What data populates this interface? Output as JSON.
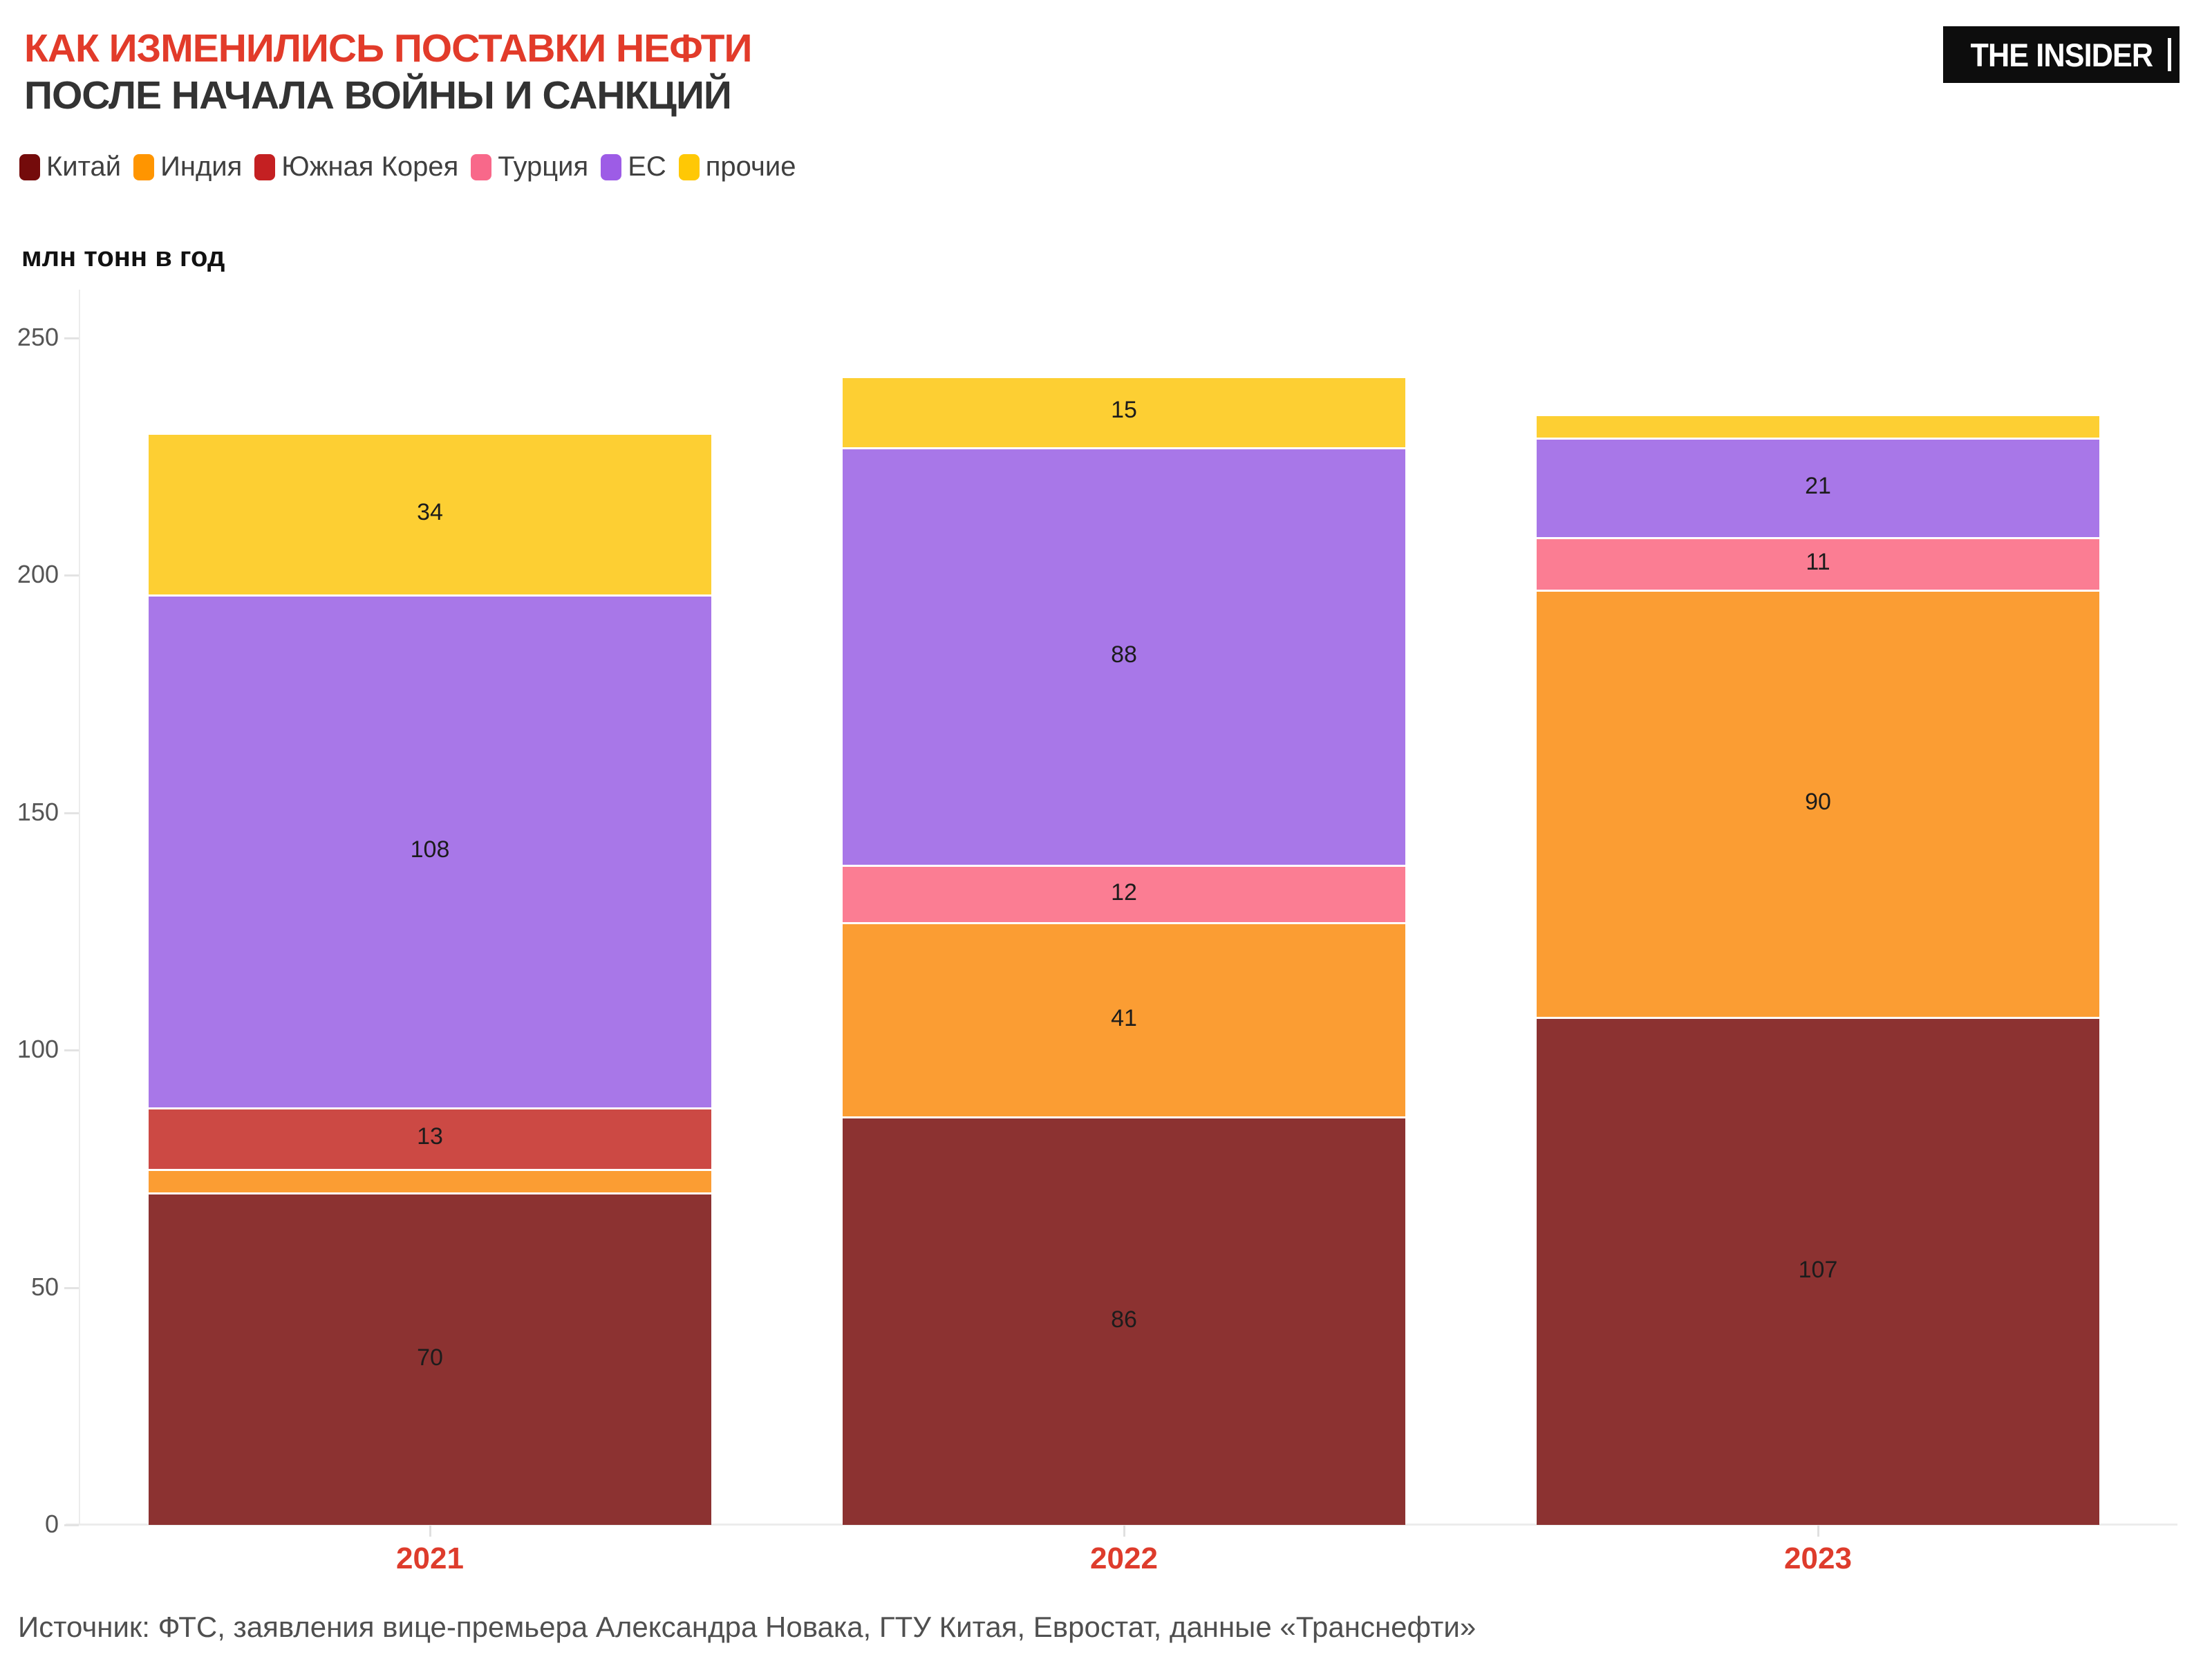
{
  "header": {
    "title_line1": "КАК ИЗМЕНИЛИСЬ ПОСТАВКИ НЕФТИ",
    "title_line2": "ПОСЛЕ НАЧАЛА ВОЙНЫ И САНКЦИЙ",
    "logo_text": "THE INSIDER"
  },
  "legend": [
    {
      "label": "Китай",
      "color": "#740B0B"
    },
    {
      "label": "Индия",
      "color": "#FF9500"
    },
    {
      "label": "Южная Корея",
      "color": "#C42022"
    },
    {
      "label": "Турция",
      "color": "#F8688A"
    },
    {
      "label": "ЕС",
      "color": "#9D5CE6"
    },
    {
      "label": "прочие",
      "color": "#FFC805"
    }
  ],
  "chart_data": {
    "type": "bar",
    "stacked": true,
    "title": "КАК ИЗМЕНИЛИСЬ ПОСТАВКИ НЕФТИ ПОСЛЕ НАЧАЛА ВОЙНЫ И САНКЦИЙ",
    "ylabel": "млн тонн в год",
    "xlabel": "",
    "categories": [
      "2021",
      "2022",
      "2023"
    ],
    "series": [
      {
        "name": "Китай",
        "color": "#8C3231",
        "values": [
          70,
          86,
          107
        ]
      },
      {
        "name": "Индия",
        "color": "#FB9D33",
        "values": [
          5,
          41,
          90
        ]
      },
      {
        "name": "Южная Корея",
        "color": "#CC4944",
        "values": [
          13,
          0,
          0
        ]
      },
      {
        "name": "Турция",
        "color": "#FB7D93",
        "values": [
          0,
          12,
          11
        ]
      },
      {
        "name": "ЕС",
        "color": "#A877E8",
        "values": [
          108,
          88,
          21
        ]
      },
      {
        "name": "прочие",
        "color": "#FDCF33",
        "values": [
          34,
          15,
          5
        ]
      }
    ],
    "totals": [
      230,
      242,
      234
    ],
    "y_ticks": [
      0,
      50,
      100,
      150,
      200,
      250
    ],
    "ylim": [
      0,
      250
    ],
    "grid": false,
    "legend_position": "top",
    "value_labels_min_shown": 10
  },
  "source": "Источник: ФТС, заявления вице-премьера Александра Новака, ГТУ Китая, Евростат, данные «Транснефти»"
}
